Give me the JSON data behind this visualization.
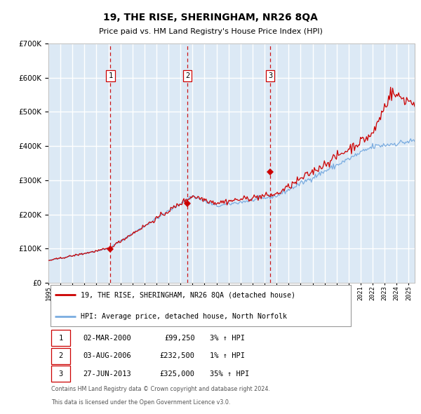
{
  "title": "19, THE RISE, SHERINGHAM, NR26 8QA",
  "subtitle": "Price paid vs. HM Land Registry's House Price Index (HPI)",
  "legend_line1": "19, THE RISE, SHERINGHAM, NR26 8QA (detached house)",
  "legend_line2": "HPI: Average price, detached house, North Norfolk",
  "sale_points": [
    {
      "label": "1",
      "date_str": "02-MAR-2000",
      "date_num": 2000.17,
      "price": 99250,
      "pct": "3%",
      "dir": "↑"
    },
    {
      "label": "2",
      "date_str": "03-AUG-2006",
      "date_num": 2006.59,
      "price": 232500,
      "pct": "1%",
      "dir": "↑"
    },
    {
      "label": "3",
      "date_str": "27-JUN-2013",
      "date_num": 2013.49,
      "price": 325000,
      "pct": "35%",
      "dir": "↑"
    }
  ],
  "hpi_color": "#7aace0",
  "price_color": "#cc0000",
  "dot_color": "#cc0000",
  "background_color": "#dce9f5",
  "grid_color": "#ffffff",
  "ylim": [
    0,
    700000
  ],
  "xlim_start": 1995.0,
  "xlim_end": 2025.5,
  "footnote1": "Contains HM Land Registry data © Crown copyright and database right 2024.",
  "footnote2": "This data is licensed under the Open Government Licence v3.0."
}
